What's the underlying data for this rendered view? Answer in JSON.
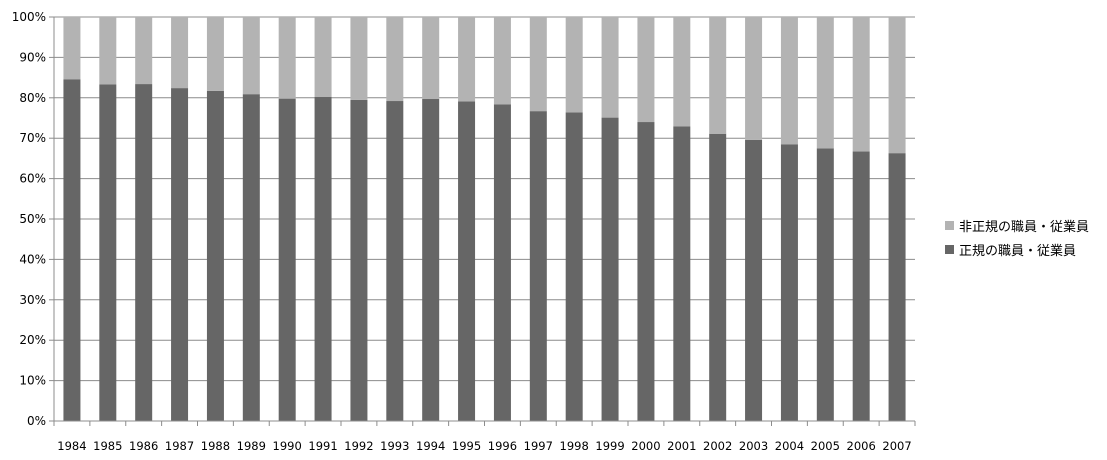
{
  "chart_data": {
    "type": "bar",
    "stacked": true,
    "percent_stacked": true,
    "categories": [
      "1984",
      "1985",
      "1986",
      "1987",
      "1988",
      "1989",
      "1990",
      "1991",
      "1992",
      "1993",
      "1994",
      "1995",
      "1996",
      "1997",
      "1998",
      "1999",
      "2000",
      "2001",
      "2002",
      "2003",
      "2004",
      "2005",
      "2006",
      "2007"
    ],
    "series": [
      {
        "name": "正規の職員・従業員",
        "color": "#666666",
        "values": [
          84.6,
          83.3,
          83.4,
          82.4,
          81.7,
          80.9,
          79.8,
          80.2,
          79.5,
          79.2,
          79.7,
          79.1,
          78.4,
          76.7,
          76.4,
          75.1,
          74.0,
          72.9,
          71.1,
          69.6,
          68.5,
          67.5,
          66.7,
          66.3
        ]
      },
      {
        "name": "非正規の職員・従業員",
        "color": "#b3b3b3",
        "values": [
          15.4,
          16.7,
          16.6,
          17.6,
          18.3,
          19.1,
          20.2,
          19.8,
          20.5,
          20.8,
          20.3,
          20.9,
          21.6,
          23.3,
          23.6,
          24.9,
          26.0,
          27.1,
          28.9,
          30.4,
          31.5,
          32.5,
          33.3,
          33.7
        ]
      }
    ],
    "ylim": [
      0,
      100
    ],
    "y_ticks": [
      "0%",
      "10%",
      "20%",
      "30%",
      "40%",
      "50%",
      "60%",
      "70%",
      "80%",
      "90%",
      "100%"
    ],
    "grid": true,
    "legend_position": "right",
    "legend": [
      {
        "label": "非正規の職員・従業員",
        "color": "#b3b3b3"
      },
      {
        "label": "正規の職員・従業員",
        "color": "#666666"
      }
    ],
    "title": "",
    "xlabel": "",
    "ylabel": ""
  }
}
